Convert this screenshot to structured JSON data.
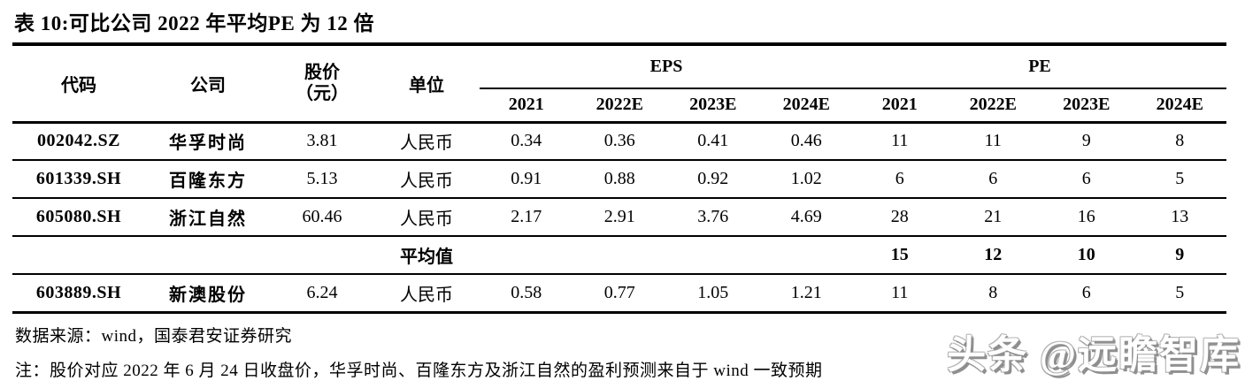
{
  "title": "表 10:可比公司 2022 年平均PE 为 12 倍",
  "table": {
    "columns": {
      "code": "代码",
      "company": "公司",
      "price_line1": "股价",
      "price_line2": "（元）",
      "unit": "单位",
      "eps_group": "EPS",
      "pe_group": "PE",
      "years": [
        "2021",
        "2022E",
        "2023E",
        "2024E"
      ]
    },
    "rows": [
      {
        "code": "002042.SZ",
        "company": "华孚时尚",
        "price": "3.81",
        "unit": "人民币",
        "eps": [
          "0.34",
          "0.36",
          "0.41",
          "0.46"
        ],
        "pe": [
          "11",
          "11",
          "9",
          "8"
        ]
      },
      {
        "code": "601339.SH",
        "company": "百隆东方",
        "price": "5.13",
        "unit": "人民币",
        "eps": [
          "0.91",
          "0.88",
          "0.92",
          "1.02"
        ],
        "pe": [
          "6",
          "6",
          "6",
          "5"
        ]
      },
      {
        "code": "605080.SH",
        "company": "浙江自然",
        "price": "60.46",
        "unit": "人民币",
        "eps": [
          "2.17",
          "2.91",
          "3.76",
          "4.69"
        ],
        "pe": [
          "28",
          "21",
          "16",
          "13"
        ]
      },
      {
        "code": "603889.SH",
        "company": "新澳股份",
        "price": "6.24",
        "unit": "人民币",
        "eps": [
          "0.58",
          "0.77",
          "1.05",
          "1.21"
        ],
        "pe": [
          "11",
          "8",
          "6",
          "5"
        ]
      }
    ],
    "average_row": {
      "label": "平均值",
      "pe": [
        "15",
        "12",
        "10",
        "9"
      ]
    }
  },
  "source": "数据来源：wind，国泰君安证券研究",
  "note": "注：股价对应 2022 年 6 月 24 日收盘价，华孚时尚、百隆东方及浙江自然的盈利预测来自于 wind 一致预期",
  "watermark": "头条 @远瞻智库"
}
